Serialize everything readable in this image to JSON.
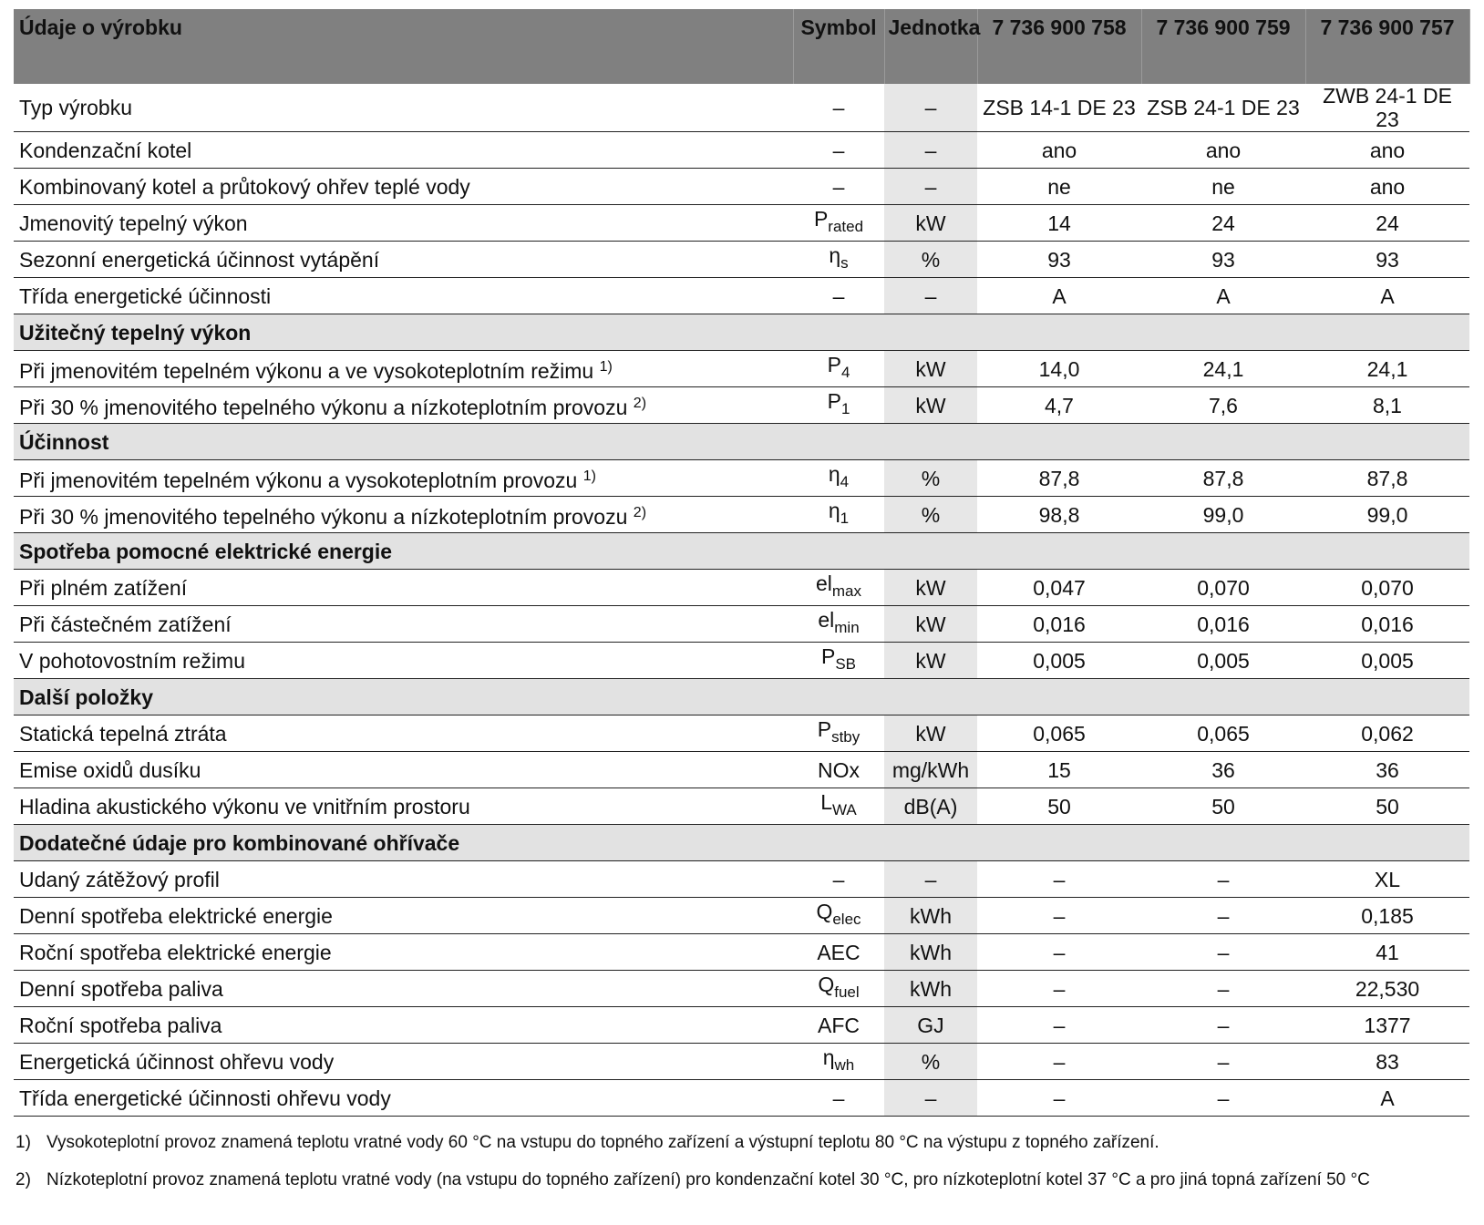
{
  "table": {
    "header": [
      "Údaje o výrobku",
      "Symbol",
      "Jednotka",
      "7 736 900 758",
      "7 736 900 759",
      "7 736 900 757"
    ],
    "rows": [
      {
        "label": "Typ výrobku",
        "symbol": "–",
        "unit": "–",
        "values": [
          "ZSB 14-1 DE 23",
          "ZSB 24-1 DE 23",
          "ZWB 24-1 DE 23"
        ]
      },
      {
        "label": "Kondenzační kotel",
        "symbol": "–",
        "unit": "–",
        "values": [
          "ano",
          "ano",
          "ano"
        ]
      },
      {
        "label": "Kombinovaný kotel a průtokový ohřev teplé vody",
        "symbol": "–",
        "unit": "–",
        "values": [
          "ne",
          "ne",
          "ano"
        ]
      },
      {
        "label": "Jmenovitý tepelný výkon",
        "symbol": {
          "base": "P",
          "sub": "rated"
        },
        "unit": "kW",
        "values": [
          "14",
          "24",
          "24"
        ]
      },
      {
        "label": "Sezonní energetická účinnost vytápění",
        "symbol": {
          "base": "η",
          "sub": "s"
        },
        "unit": "%",
        "values": [
          "93",
          "93",
          "93"
        ]
      },
      {
        "label": "Třída energetické účinnosti",
        "symbol": "–",
        "unit": "–",
        "values": [
          "A",
          "A",
          "A"
        ]
      },
      {
        "section": "Užitečný tepelný výkon"
      },
      {
        "label": "Při jmenovitém tepelném výkonu a ve vysokoteplotním režimu",
        "note": "1)",
        "symbol": {
          "base": "P",
          "sub": "4"
        },
        "unit": "kW",
        "values": [
          "14,0",
          "24,1",
          "24,1"
        ]
      },
      {
        "label": "Při 30 % jmenovitého tepelného výkonu a nízkoteplotním provozu",
        "note": "2)",
        "symbol": {
          "base": "P",
          "sub": "1"
        },
        "unit": "kW",
        "values": [
          "4,7",
          "7,6",
          "8,1"
        ]
      },
      {
        "section": "Účinnost"
      },
      {
        "label": "Při jmenovitém tepelném výkonu a vysokoteplotním provozu",
        "note": "1)",
        "symbol": {
          "base": "η",
          "sub": "4"
        },
        "unit": "%",
        "values": [
          "87,8",
          "87,8",
          "87,8"
        ]
      },
      {
        "label": "Při 30 % jmenovitého tepelného výkonu a nízkoteplotním provozu",
        "note": "2)",
        "symbol": {
          "base": "η",
          "sub": "1"
        },
        "unit": "%",
        "values": [
          "98,8",
          "99,0",
          "99,0"
        ]
      },
      {
        "section": "Spotřeba pomocné elektrické energie"
      },
      {
        "label": "Při plném zatížení",
        "symbol": {
          "base": "el",
          "sub": "max"
        },
        "unit": "kW",
        "values": [
          "0,047",
          "0,070",
          "0,070"
        ]
      },
      {
        "label": "Při částečném zatížení",
        "symbol": {
          "base": "el",
          "sub": "min"
        },
        "unit": "kW",
        "values": [
          "0,016",
          "0,016",
          "0,016"
        ]
      },
      {
        "label": "V pohotovostním režimu",
        "symbol": {
          "base": "P",
          "sub": "SB"
        },
        "unit": "kW",
        "values": [
          "0,005",
          "0,005",
          "0,005"
        ]
      },
      {
        "section": "Další položky"
      },
      {
        "label": "Statická tepelná ztráta",
        "symbol": {
          "base": "P",
          "sub": "stby"
        },
        "unit": "kW",
        "values": [
          "0,065",
          "0,065",
          "0,062"
        ]
      },
      {
        "label": "Emise oxidů dusíku",
        "symbol": "NOx",
        "unit": "mg/kWh",
        "values": [
          "15",
          "36",
          "36"
        ]
      },
      {
        "label": "Hladina akustického výkonu ve vnitřním prostoru",
        "symbol": {
          "base": "L",
          "sub": "WA"
        },
        "unit": "dB(A)",
        "values": [
          "50",
          "50",
          "50"
        ]
      },
      {
        "section": "Dodatečné údaje pro kombinované ohřívače"
      },
      {
        "label": "Udaný zátěžový profil",
        "symbol": "–",
        "unit": "–",
        "values": [
          "–",
          "–",
          "XL"
        ]
      },
      {
        "label": "Denní spotřeba elektrické energie",
        "symbol": {
          "base": "Q",
          "sub": "elec"
        },
        "unit": "kWh",
        "values": [
          "–",
          "–",
          "0,185"
        ]
      },
      {
        "label": "Roční spotřeba elektrické energie",
        "symbol": "AEC",
        "unit": "kWh",
        "values": [
          "–",
          "–",
          "41"
        ]
      },
      {
        "label": "Denní spotřeba paliva",
        "symbol": {
          "base": "Q",
          "sub": "fuel"
        },
        "unit": "kWh",
        "values": [
          "–",
          "–",
          "22,530"
        ]
      },
      {
        "label": "Roční spotřeba paliva",
        "symbol": "AFC",
        "unit": "GJ",
        "values": [
          "–",
          "–",
          "1377"
        ]
      },
      {
        "label": "Energetická účinnost ohřevu vody",
        "symbol": {
          "base": "η",
          "sub": "wh"
        },
        "unit": "%",
        "values": [
          "–",
          "–",
          "83"
        ]
      },
      {
        "label": "Třída energetické účinnosti ohřevu vody",
        "symbol": "–",
        "unit": "–",
        "values": [
          "–",
          "–",
          "A"
        ]
      }
    ]
  },
  "footnotes": [
    {
      "marker": "1)",
      "text": "Vysokoteplotní provoz znamená teplotu vratné vody 60 °C na vstupu do topného zařízení a výstupní teplotu 80 °C na výstupu z topného zařízení."
    },
    {
      "marker": "2)",
      "text": "Nízkoteplotní provoz znamená teplotu vratné vody (na vstupu do topného zařízení) pro kondenzační kotel 30 °C, pro nízkoteplotní kotel 37 °C a pro jiná topná zařízení 50 °C"
    }
  ]
}
